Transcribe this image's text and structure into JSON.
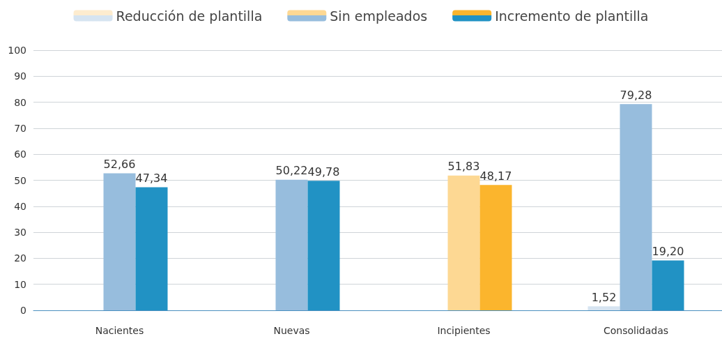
{
  "chart_data": {
    "type": "bar",
    "categories": [
      "Nacientes",
      "Nuevas",
      "Incipientes",
      "Consolidadas"
    ],
    "series": [
      {
        "name": "Reducción de plantilla",
        "color": "#d6e4f1",
        "colors": [
          "#d6e4f1",
          "#d6e4f1",
          "#fdeccf",
          "#d6e4f1"
        ],
        "values": [
          0,
          0,
          0,
          1.52
        ],
        "value_labels": [
          null,
          null,
          null,
          "1,52"
        ]
      },
      {
        "name": "Sin empleados",
        "color": "#97bddd",
        "colors": [
          "#97bddd",
          "#97bddd",
          "#fdd893",
          "#97bddd"
        ],
        "values": [
          52.66,
          50.22,
          51.83,
          79.28
        ],
        "value_labels": [
          "52,66",
          "50,22",
          "51,83",
          "79,28"
        ]
      },
      {
        "name": "Incremento de plantilla",
        "color": "#2192c4",
        "colors": [
          "#2192c4",
          "#2192c4",
          "#fbb52d",
          "#2192c4"
        ],
        "values": [
          47.34,
          49.78,
          48.17,
          19.2
        ],
        "value_labels": [
          "47,34",
          "49,78",
          "48,17",
          "19,20"
        ]
      }
    ],
    "ylim": [
      0,
      100
    ],
    "yticks": [
      0,
      10,
      20,
      30,
      40,
      50,
      60,
      70,
      80,
      90,
      100
    ],
    "grid": "y",
    "legend": "top"
  }
}
